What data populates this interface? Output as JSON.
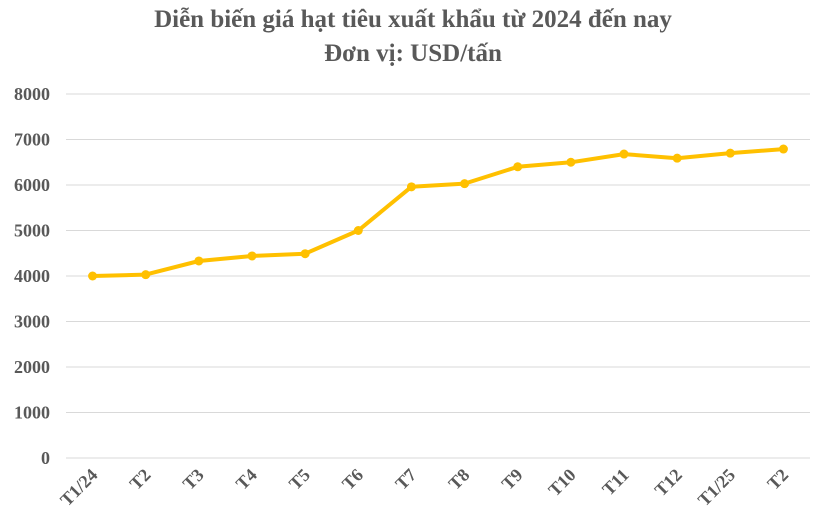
{
  "chart_data": {
    "type": "line",
    "title": "Diễn biến giá hạt tiêu xuất khẩu từ 2024 đến nay",
    "subtitle": "Đơn vị: USD/tấn",
    "xlabel": "",
    "ylabel": "",
    "categories": [
      "T1/24",
      "T2",
      "T3",
      "T4",
      "T5",
      "T6",
      "T7",
      "T8",
      "T9",
      "T10",
      "T11",
      "T12",
      "T1/25",
      "T2"
    ],
    "values": [
      4000,
      4030,
      4330,
      4440,
      4490,
      5000,
      5960,
      6030,
      6400,
      6500,
      6680,
      6590,
      6700,
      6790
    ],
    "ylim": [
      0,
      8000
    ],
    "yticks": [
      0,
      1000,
      2000,
      3000,
      4000,
      5000,
      6000,
      7000,
      8000
    ],
    "grid": true,
    "legend": "none",
    "colors": {
      "line": "#FFC000",
      "grid": "#D9D9D9",
      "text": "#595959"
    }
  }
}
